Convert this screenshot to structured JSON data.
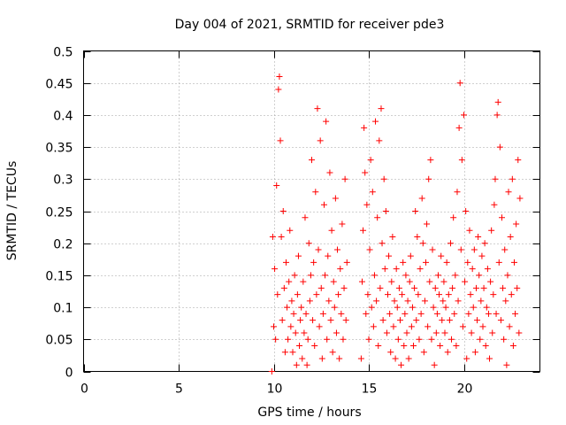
{
  "chart_data": {
    "type": "scatter",
    "title": "Day 004 of 2021, SRMTID for receiver pde3",
    "xlabel": "GPS time / hours",
    "ylabel": "SRMTID / TECUs",
    "xlim": [
      0,
      24
    ],
    "ylim": [
      0,
      0.5
    ],
    "x_ticks": [
      0,
      5,
      10,
      15,
      20
    ],
    "x_tick_labels": [
      "0",
      "5",
      "10",
      "15",
      "20"
    ],
    "y_ticks": [
      0,
      0.05,
      0.1,
      0.15,
      0.2,
      0.25,
      0.3,
      0.35,
      0.4,
      0.45,
      0.5
    ],
    "y_tick_labels": [
      "0",
      "0.05",
      "0.1",
      "0.15",
      "0.2",
      "0.25",
      "0.3",
      "0.35",
      "0.4",
      "0.45",
      "0.5"
    ],
    "grid": true,
    "marker": "+",
    "color": "#ff0000",
    "series": [
      {
        "name": "SRMTID",
        "points": [
          [
            9.9,
            0.0
          ],
          [
            9.95,
            0.21
          ],
          [
            10.0,
            0.07
          ],
          [
            10.05,
            0.16
          ],
          [
            10.1,
            0.05
          ],
          [
            10.15,
            0.29
          ],
          [
            10.2,
            0.12
          ],
          [
            10.25,
            0.44
          ],
          [
            10.3,
            0.46
          ],
          [
            10.35,
            0.36
          ],
          [
            10.4,
            0.21
          ],
          [
            10.45,
            0.08
          ],
          [
            10.5,
            0.25
          ],
          [
            10.55,
            0.13
          ],
          [
            10.6,
            0.03
          ],
          [
            10.65,
            0.17
          ],
          [
            10.7,
            0.1
          ],
          [
            10.75,
            0.05
          ],
          [
            10.8,
            0.14
          ],
          [
            10.85,
            0.22
          ],
          [
            10.9,
            0.07
          ],
          [
            10.95,
            0.11
          ],
          [
            11.0,
            0.03
          ],
          [
            11.05,
            0.09
          ],
          [
            11.1,
            0.15
          ],
          [
            11.15,
            0.06
          ],
          [
            11.2,
            0.01
          ],
          [
            11.25,
            0.12
          ],
          [
            11.3,
            0.18
          ],
          [
            11.35,
            0.04
          ],
          [
            11.4,
            0.08
          ],
          [
            11.45,
            0.1
          ],
          [
            11.5,
            0.02
          ],
          [
            11.55,
            0.14
          ],
          [
            11.6,
            0.06
          ],
          [
            11.65,
            0.24
          ],
          [
            11.7,
            0.09
          ],
          [
            11.75,
            0.01
          ],
          [
            11.8,
            0.05
          ],
          [
            11.85,
            0.2
          ],
          [
            11.9,
            0.11
          ],
          [
            11.95,
            0.15
          ],
          [
            12.0,
            0.33
          ],
          [
            12.05,
            0.08
          ],
          [
            12.1,
            0.17
          ],
          [
            12.15,
            0.04
          ],
          [
            12.2,
            0.28
          ],
          [
            12.25,
            0.12
          ],
          [
            12.3,
            0.41
          ],
          [
            12.35,
            0.19
          ],
          [
            12.4,
            0.07
          ],
          [
            12.45,
            0.36
          ],
          [
            12.5,
            0.13
          ],
          [
            12.55,
            0.02
          ],
          [
            12.6,
            0.09
          ],
          [
            12.65,
            0.26
          ],
          [
            12.7,
            0.15
          ],
          [
            12.75,
            0.39
          ],
          [
            12.8,
            0.05
          ],
          [
            12.85,
            0.18
          ],
          [
            12.9,
            0.11
          ],
          [
            12.95,
            0.31
          ],
          [
            13.0,
            0.08
          ],
          [
            13.05,
            0.22
          ],
          [
            13.1,
            0.03
          ],
          [
            13.15,
            0.14
          ],
          [
            13.2,
            0.1
          ],
          [
            13.25,
            0.27
          ],
          [
            13.3,
            0.06
          ],
          [
            13.35,
            0.19
          ],
          [
            13.4,
            0.12
          ],
          [
            13.45,
            0.02
          ],
          [
            13.5,
            0.16
          ],
          [
            13.55,
            0.09
          ],
          [
            13.6,
            0.23
          ],
          [
            13.65,
            0.05
          ],
          [
            13.7,
            0.13
          ],
          [
            13.75,
            0.3
          ],
          [
            13.8,
            0.08
          ],
          [
            13.85,
            0.17
          ],
          [
            14.6,
            0.02
          ],
          [
            14.65,
            0.14
          ],
          [
            14.7,
            0.22
          ],
          [
            14.75,
            0.38
          ],
          [
            14.8,
            0.31
          ],
          [
            14.85,
            0.09
          ],
          [
            14.9,
            0.26
          ],
          [
            14.95,
            0.12
          ],
          [
            15.0,
            0.05
          ],
          [
            15.05,
            0.19
          ],
          [
            15.1,
            0.33
          ],
          [
            15.15,
            0.1
          ],
          [
            15.2,
            0.28
          ],
          [
            15.25,
            0.07
          ],
          [
            15.3,
            0.15
          ],
          [
            15.35,
            0.39
          ],
          [
            15.4,
            0.11
          ],
          [
            15.45,
            0.24
          ],
          [
            15.5,
            0.04
          ],
          [
            15.55,
            0.36
          ],
          [
            15.6,
            0.13
          ],
          [
            15.65,
            0.41
          ],
          [
            15.7,
            0.2
          ],
          [
            15.75,
            0.08
          ],
          [
            15.8,
            0.3
          ],
          [
            15.85,
            0.16
          ],
          [
            15.9,
            0.25
          ],
          [
            15.95,
            0.06
          ],
          [
            16.0,
            0.12
          ],
          [
            16.05,
            0.18
          ],
          [
            16.1,
            0.09
          ],
          [
            16.15,
            0.03
          ],
          [
            16.2,
            0.14
          ],
          [
            16.25,
            0.21
          ],
          [
            16.3,
            0.07
          ],
          [
            16.35,
            0.11
          ],
          [
            16.4,
            0.02
          ],
          [
            16.45,
            0.16
          ],
          [
            16.5,
            0.1
          ],
          [
            16.55,
            0.05
          ],
          [
            16.6,
            0.13
          ],
          [
            16.65,
            0.08
          ],
          [
            16.7,
            0.01
          ],
          [
            16.75,
            0.12
          ],
          [
            16.8,
            0.17
          ],
          [
            16.85,
            0.04
          ],
          [
            16.9,
            0.09
          ],
          [
            16.95,
            0.15
          ],
          [
            17.0,
            0.06
          ],
          [
            17.05,
            0.11
          ],
          [
            17.1,
            0.02
          ],
          [
            17.15,
            0.14
          ],
          [
            17.2,
            0.18
          ],
          [
            17.25,
            0.07
          ],
          [
            17.3,
            0.1
          ],
          [
            17.35,
            0.04
          ],
          [
            17.4,
            0.13
          ],
          [
            17.45,
            0.25
          ],
          [
            17.5,
            0.08
          ],
          [
            17.55,
            0.21
          ],
          [
            17.6,
            0.12
          ],
          [
            17.65,
            0.05
          ],
          [
            17.7,
            0.16
          ],
          [
            17.75,
            0.09
          ],
          [
            17.8,
            0.27
          ],
          [
            17.85,
            0.2
          ],
          [
            17.9,
            0.03
          ],
          [
            17.95,
            0.11
          ],
          [
            18.0,
            0.17
          ],
          [
            18.05,
            0.23
          ],
          [
            18.1,
            0.07
          ],
          [
            18.15,
            0.3
          ],
          [
            18.2,
            0.14
          ],
          [
            18.25,
            0.33
          ],
          [
            18.3,
            0.05
          ],
          [
            18.35,
            0.19
          ],
          [
            18.4,
            0.1
          ],
          [
            18.45,
            0.01
          ],
          [
            18.5,
            0.13
          ],
          [
            18.55,
            0.06
          ],
          [
            18.6,
            0.09
          ],
          [
            18.65,
            0.15
          ],
          [
            18.7,
            0.12
          ],
          [
            18.75,
            0.04
          ],
          [
            18.8,
            0.18
          ],
          [
            18.85,
            0.08
          ],
          [
            18.9,
            0.11
          ],
          [
            18.95,
            0.14
          ],
          [
            19.0,
            0.06
          ],
          [
            19.05,
            0.1
          ],
          [
            19.1,
            0.17
          ],
          [
            19.15,
            0.03
          ],
          [
            19.2,
            0.12
          ],
          [
            19.25,
            0.08
          ],
          [
            19.3,
            0.2
          ],
          [
            19.35,
            0.05
          ],
          [
            19.4,
            0.13
          ],
          [
            19.45,
            0.24
          ],
          [
            19.5,
            0.09
          ],
          [
            19.55,
            0.15
          ],
          [
            19.6,
            0.04
          ],
          [
            19.65,
            0.28
          ],
          [
            19.7,
            0.11
          ],
          [
            19.75,
            0.38
          ],
          [
            19.8,
            0.45
          ],
          [
            19.85,
            0.19
          ],
          [
            19.9,
            0.33
          ],
          [
            19.95,
            0.07
          ],
          [
            20.0,
            0.4
          ],
          [
            20.05,
            0.14
          ],
          [
            20.1,
            0.25
          ],
          [
            20.15,
            0.02
          ],
          [
            20.2,
            0.17
          ],
          [
            20.25,
            0.09
          ],
          [
            20.3,
            0.22
          ],
          [
            20.35,
            0.12
          ],
          [
            20.4,
            0.06
          ],
          [
            20.45,
            0.16
          ],
          [
            20.5,
            0.1
          ],
          [
            20.55,
            0.19
          ],
          [
            20.6,
            0.03
          ],
          [
            20.65,
            0.13
          ],
          [
            20.7,
            0.08
          ],
          [
            20.75,
            0.21
          ],
          [
            20.8,
            0.15
          ],
          [
            20.85,
            0.05
          ],
          [
            20.9,
            0.11
          ],
          [
            20.95,
            0.18
          ],
          [
            21.0,
            0.07
          ],
          [
            21.05,
            0.13
          ],
          [
            21.1,
            0.2
          ],
          [
            21.15,
            0.04
          ],
          [
            21.2,
            0.1
          ],
          [
            21.25,
            0.16
          ],
          [
            21.3,
            0.09
          ],
          [
            21.35,
            0.02
          ],
          [
            21.4,
            0.14
          ],
          [
            21.45,
            0.22
          ],
          [
            21.5,
            0.06
          ],
          [
            21.55,
            0.12
          ],
          [
            21.6,
            0.26
          ],
          [
            21.65,
            0.3
          ],
          [
            21.7,
            0.09
          ],
          [
            21.75,
            0.4
          ],
          [
            21.8,
            0.42
          ],
          [
            21.85,
            0.17
          ],
          [
            21.9,
            0.35
          ],
          [
            21.95,
            0.08
          ],
          [
            22.0,
            0.24
          ],
          [
            22.05,
            0.13
          ],
          [
            22.1,
            0.05
          ],
          [
            22.15,
            0.19
          ],
          [
            22.2,
            0.11
          ],
          [
            22.25,
            0.01
          ],
          [
            22.3,
            0.15
          ],
          [
            22.35,
            0.28
          ],
          [
            22.4,
            0.07
          ],
          [
            22.45,
            0.21
          ],
          [
            22.5,
            0.12
          ],
          [
            22.55,
            0.3
          ],
          [
            22.6,
            0.04
          ],
          [
            22.65,
            0.17
          ],
          [
            22.7,
            0.09
          ],
          [
            22.75,
            0.23
          ],
          [
            22.8,
            0.13
          ],
          [
            22.85,
            0.33
          ],
          [
            22.9,
            0.06
          ],
          [
            22.95,
            0.27
          ]
        ]
      }
    ]
  }
}
